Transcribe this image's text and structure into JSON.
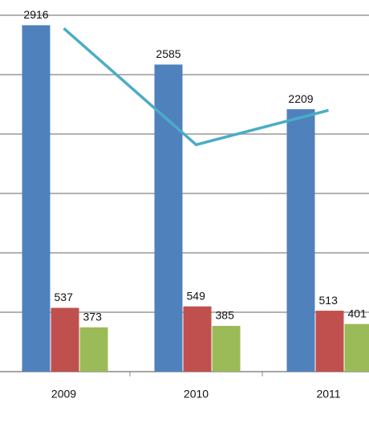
{
  "chart_data": {
    "type": "bar",
    "categories": [
      "2009",
      "2010",
      "2011"
    ],
    "series": [
      {
        "color": "#4f81bd",
        "values": [
          2916,
          2585,
          2209
        ]
      },
      {
        "color": "#c0504d",
        "values": [
          537,
          549,
          513
        ]
      },
      {
        "color": "#9bbb59",
        "values": [
          373,
          385,
          401
        ]
      },
      {
        "type": "line",
        "color": "#4bacc6",
        "values": [
          2890,
          1910,
          2200
        ]
      }
    ],
    "ylim": [
      0,
      3000
    ],
    "yticks": [
      0,
      500,
      1000,
      1500,
      2000,
      2500,
      3000
    ],
    "grid": true
  }
}
